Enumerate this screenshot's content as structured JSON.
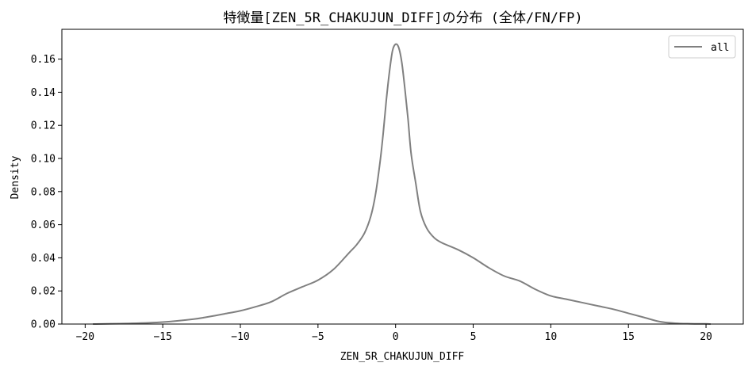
{
  "chart_data": {
    "type": "line",
    "title": "特徴量[ZEN_5R_CHAKUJUN_DIFF]の分布 (全体/FN/FP)",
    "xlabel": "ZEN_5R_CHAKUJUN_DIFF",
    "ylabel": "Density",
    "xlim": [
      -21.5,
      22.4
    ],
    "ylim": [
      0,
      0.178
    ],
    "xticks": [
      -20,
      -15,
      -10,
      -5,
      0,
      5,
      10,
      15,
      20
    ],
    "xtick_labels": [
      "−20",
      "−15",
      "−10",
      "−5",
      "0",
      "5",
      "10",
      "15",
      "20"
    ],
    "yticks": [
      0,
      0.02,
      0.04,
      0.06,
      0.08,
      0.1,
      0.12,
      0.14,
      0.16
    ],
    "ytick_labels": [
      "0.00",
      "0.02",
      "0.04",
      "0.06",
      "0.08",
      "0.10",
      "0.12",
      "0.14",
      "0.16"
    ],
    "grid": false,
    "legend_position": "top-right",
    "series": [
      {
        "name": "all",
        "color": "#808080",
        "x": [
          -19.5,
          -17,
          -15,
          -13,
          -12,
          -11,
          -10,
          -9,
          -8,
          -7,
          -6,
          -5,
          -4,
          -3,
          -2.5,
          -2,
          -1.6,
          -1.3,
          -1.0,
          -0.8,
          -0.6,
          -0.4,
          -0.2,
          0,
          0.2,
          0.4,
          0.6,
          0.8,
          1.0,
          1.3,
          1.6,
          2.0,
          2.5,
          3,
          4,
          5,
          6,
          7,
          8,
          9,
          10,
          11,
          12,
          13,
          14,
          15,
          16,
          17,
          18,
          19,
          20,
          20.3
        ],
        "y": [
          0.0,
          0.0004,
          0.0012,
          0.003,
          0.0045,
          0.0062,
          0.008,
          0.0105,
          0.0135,
          0.0185,
          0.0225,
          0.0265,
          0.033,
          0.043,
          0.048,
          0.055,
          0.065,
          0.078,
          0.098,
          0.115,
          0.135,
          0.152,
          0.165,
          0.169,
          0.167,
          0.158,
          0.142,
          0.124,
          0.103,
          0.085,
          0.068,
          0.058,
          0.052,
          0.049,
          0.045,
          0.04,
          0.034,
          0.029,
          0.026,
          0.021,
          0.017,
          0.015,
          0.013,
          0.011,
          0.009,
          0.0065,
          0.004,
          0.0015,
          0.0005,
          0.0002,
          0.0001,
          0.0
        ]
      }
    ]
  }
}
